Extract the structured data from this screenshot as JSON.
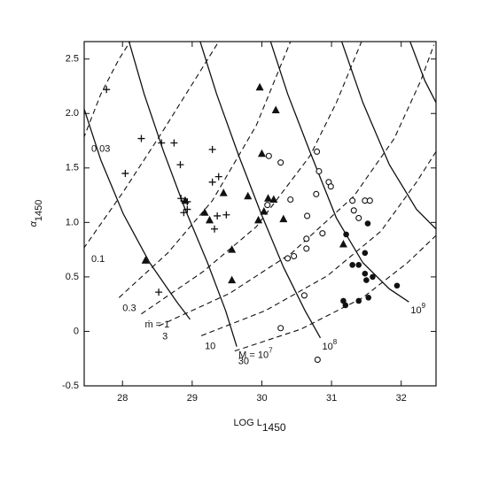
{
  "chart_data": {
    "type": "scatter",
    "x_label": "LOG L",
    "x_label_sub": "1450",
    "y_label": "α",
    "y_label_sub": "1450",
    "xlim": [
      27.45,
      32.5
    ],
    "xticks": [
      28,
      29,
      30,
      31,
      32
    ],
    "ylim": [
      -0.5,
      2.66
    ],
    "yticks": [
      -0.5,
      0,
      0.5,
      {
        "value": 1,
        "label": "1.0"
      },
      1.5,
      {
        "value": 2,
        "label": "2.0"
      },
      2.5
    ],
    "color": "#111",
    "series": [
      {
        "marker": "plus",
        "x": [
          27.77,
          28.27,
          28.04,
          28.56,
          28.74,
          28.83,
          29.29,
          28.84,
          28.93,
          28.88,
          28.93,
          29.29,
          29.38,
          29.36,
          29.32,
          29.49,
          28.52
        ],
        "values": [
          2.22,
          1.77,
          1.45,
          1.73,
          1.73,
          1.53,
          1.67,
          1.22,
          1.19,
          1.09,
          1.12,
          1.37,
          1.42,
          1.06,
          0.94,
          1.07,
          0.36
        ]
      },
      {
        "marker": "triangle",
        "x": [
          28.33,
          28.9,
          29.18,
          29.25,
          29.45,
          29.57,
          29.57,
          29.8,
          29.95,
          30.03,
          30.09,
          30.17,
          29.97,
          30.2,
          30.0,
          30.31,
          31.17
        ],
        "values": [
          0.65,
          1.2,
          1.09,
          1.02,
          1.27,
          0.75,
          0.47,
          1.24,
          1.02,
          1.1,
          1.22,
          1.21,
          2.24,
          2.03,
          1.63,
          1.03,
          0.8
        ]
      },
      {
        "marker": "open-circle",
        "x": [
          30.1,
          30.27,
          30.08,
          30.41,
          30.79,
          30.82,
          30.96,
          30.99,
          30.78,
          31.3,
          31.48,
          31.55,
          30.65,
          31.32,
          31.39,
          30.64,
          30.87,
          30.64,
          30.46,
          30.37,
          30.61,
          30.27,
          30.8
        ],
        "values": [
          1.61,
          1.55,
          1.16,
          1.21,
          1.65,
          1.47,
          1.37,
          1.33,
          1.26,
          1.2,
          1.2,
          1.2,
          1.06,
          1.11,
          1.04,
          0.85,
          0.9,
          0.76,
          0.69,
          0.67,
          0.33,
          0.03,
          -0.26
        ]
      },
      {
        "marker": "filled-circle",
        "x": [
          31.21,
          31.52,
          31.48,
          31.3,
          31.39,
          31.48,
          31.59,
          31.5,
          31.17,
          31.2,
          31.39,
          31.53,
          31.94
        ],
        "values": [
          0.89,
          0.99,
          0.72,
          0.61,
          0.61,
          0.53,
          0.5,
          0.47,
          0.28,
          0.24,
          0.28,
          0.31,
          0.42
        ]
      }
    ],
    "curves": [
      {
        "style": "solid",
        "x": [
          27.44,
          27.69,
          28.01,
          28.39,
          28.78,
          28.97
        ],
        "values": [
          2.06,
          1.57,
          1.08,
          0.63,
          0.27,
          0.11
        ]
      },
      {
        "style": "solid",
        "label": "M = 10",
        "label_sup": "7",
        "x": [
          28.08,
          28.31,
          28.59,
          28.9,
          29.22,
          29.48,
          29.64
        ],
        "values": [
          2.69,
          2.18,
          1.65,
          1.12,
          0.63,
          0.19,
          -0.14
        ]
      },
      {
        "style": "solid",
        "label": "10",
        "label_sup": "8",
        "x": [
          29.1,
          29.35,
          29.67,
          29.99,
          30.31,
          30.62,
          30.84
        ],
        "values": [
          2.69,
          2.18,
          1.61,
          1.08,
          0.59,
          0.19,
          -0.06
        ]
      },
      {
        "style": "solid",
        "label": "10",
        "label_sup": "9",
        "x": [
          30.11,
          30.37,
          30.69,
          31.07,
          31.45,
          31.83,
          32.11
        ],
        "values": [
          2.69,
          2.18,
          1.65,
          1.04,
          0.63,
          0.39,
          0.27
        ]
      },
      {
        "style": "solid",
        "x": [
          31.13,
          31.45,
          31.83,
          32.22,
          32.5
        ],
        "values": [
          2.69,
          2.1,
          1.53,
          1.12,
          0.94
        ]
      },
      {
        "style": "solid",
        "x": [
          32.11,
          32.34,
          32.5
        ],
        "values": [
          2.69,
          2.3,
          2.1
        ]
      },
      {
        "style": "dashed",
        "label": "0.03",
        "x": [
          27.44,
          27.69,
          27.95,
          28.14
        ],
        "values": [
          1.77,
          2.18,
          2.5,
          2.69
        ]
      },
      {
        "style": "dashed",
        "label": "0.1",
        "x": [
          27.44,
          28.01,
          28.59,
          29.03,
          29.41
        ],
        "values": [
          0.76,
          1.28,
          1.85,
          2.3,
          2.69
        ]
      },
      {
        "style": "dashed",
        "label": "0.3",
        "x": [
          27.95,
          28.65,
          29.29,
          29.92,
          30.43
        ],
        "values": [
          0.31,
          0.72,
          1.2,
          1.89,
          2.69
        ]
      },
      {
        "style": "dashed",
        "label": "ṁ = 1",
        "x": [
          28.27,
          29.16,
          29.92,
          30.69,
          31.07,
          31.45
        ],
        "values": [
          0.16,
          0.55,
          0.96,
          1.61,
          2.1,
          2.69
        ]
      },
      {
        "style": "dashed",
        "label": "3",
        "x": [
          28.52,
          29.54,
          30.43,
          31.32,
          31.9,
          32.28,
          32.47
        ],
        "values": [
          0.05,
          0.35,
          0.72,
          1.24,
          1.77,
          2.3,
          2.63
        ]
      },
      {
        "style": "dashed",
        "label": "10",
        "x": [
          29.13,
          30.05,
          30.94,
          31.71,
          32.22,
          32.5
        ],
        "values": [
          -0.04,
          0.19,
          0.51,
          0.92,
          1.37,
          1.65
        ]
      },
      {
        "style": "dashed",
        "label": "30",
        "x": [
          29.61,
          30.56,
          31.45,
          32.09,
          32.5
        ],
        "values": [
          -0.18,
          0.02,
          0.31,
          0.63,
          0.88
        ]
      }
    ]
  }
}
